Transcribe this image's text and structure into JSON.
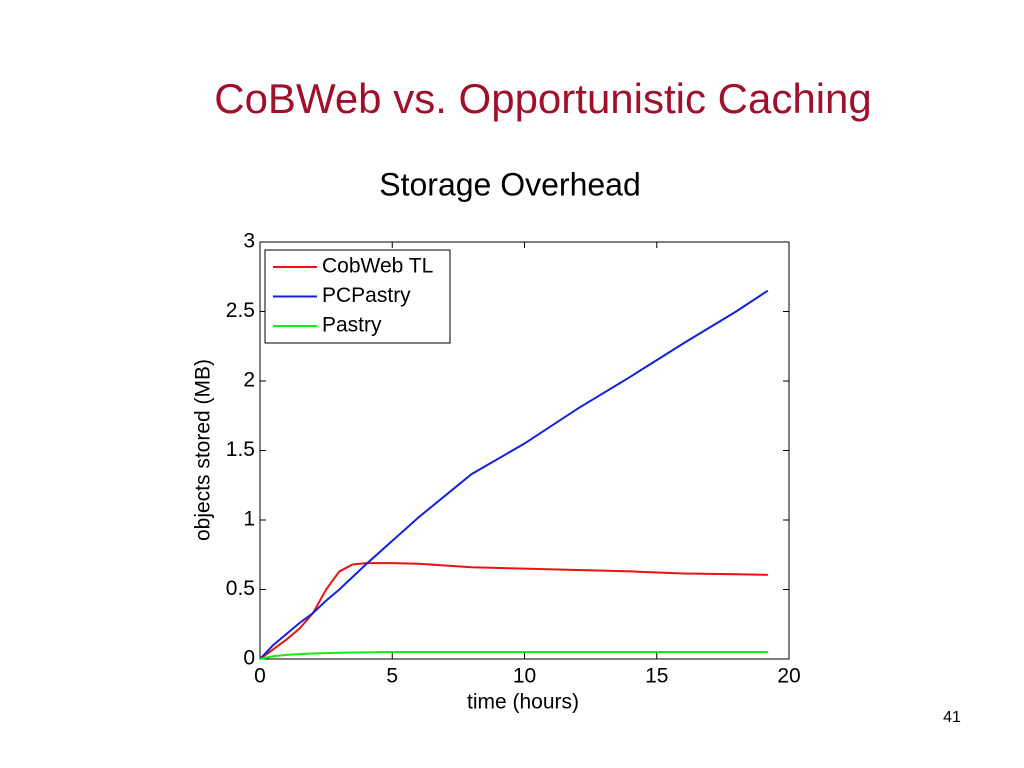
{
  "slide_title": "CoBWeb vs. Opportunistic Caching",
  "page_number": "41",
  "chart_data": {
    "type": "line",
    "title": "Storage Overhead",
    "x_label": "time (hours)",
    "y_label": "objects stored (MB)",
    "x": [
      0,
      0.5,
      1,
      1.5,
      2,
      2.5,
      3,
      3.5,
      4,
      5,
      6,
      8,
      10,
      12,
      14,
      16,
      18,
      19.2
    ],
    "series": [
      {
        "name": "CobWeb TL",
        "color": "#ee1111",
        "values": [
          0,
          0.07,
          0.14,
          0.22,
          0.33,
          0.5,
          0.63,
          0.68,
          0.69,
          0.69,
          0.685,
          0.66,
          0.65,
          0.64,
          0.63,
          0.615,
          0.61,
          0.605
        ]
      },
      {
        "name": "PCPastry",
        "color": "#1122dd",
        "values": [
          0,
          0.1,
          0.18,
          0.26,
          0.33,
          0.42,
          0.5,
          0.59,
          0.68,
          0.85,
          1.02,
          1.33,
          1.55,
          1.8,
          2.03,
          2.27,
          2.5,
          2.65
        ]
      },
      {
        "name": "Pastry",
        "color": "#11ee11",
        "values": [
          0,
          0.02,
          0.03,
          0.035,
          0.04,
          0.042,
          0.045,
          0.047,
          0.048,
          0.05,
          0.05,
          0.05,
          0.05,
          0.05,
          0.05,
          0.05,
          0.05,
          0.05
        ]
      }
    ],
    "xlim": [
      0,
      20
    ],
    "xticks": [
      0,
      5,
      10,
      15,
      20
    ],
    "ylim": [
      0,
      3
    ],
    "yticks": [
      0,
      0.5,
      1,
      1.5,
      2,
      2.5,
      3
    ],
    "grid": false,
    "legend": "upper-left"
  }
}
